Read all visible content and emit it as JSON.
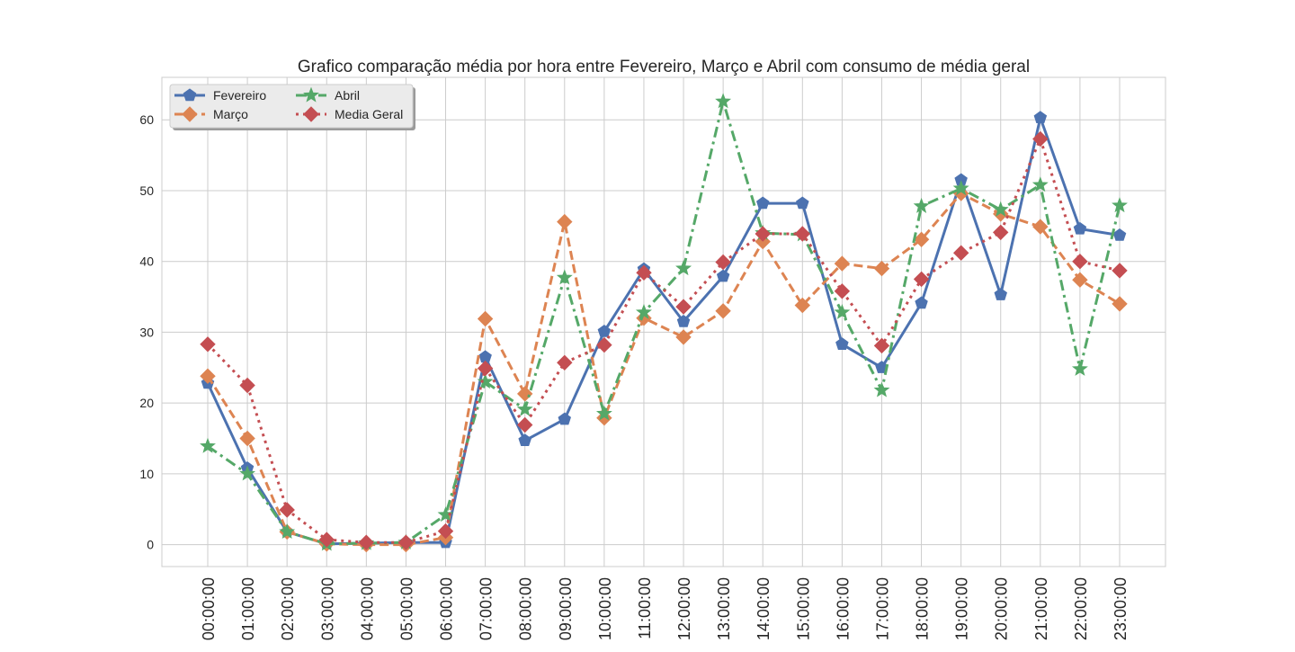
{
  "chart_data": {
    "type": "line",
    "title": "Grafico comparação média por hora entre Fevereiro, Março e Abril com consumo de média geral",
    "xlabel": "",
    "ylabel": "",
    "categories": [
      "00:00:00",
      "01:00:00",
      "02:00:00",
      "03:00:00",
      "04:00:00",
      "05:00:00",
      "06:00:00",
      "07:00:00",
      "08:00:00",
      "09:00:00",
      "10:00:00",
      "11:00:00",
      "12:00:00",
      "13:00:00",
      "14:00:00",
      "15:00:00",
      "16:00:00",
      "17:00:00",
      "18:00:00",
      "19:00:00",
      "20:00:00",
      "21:00:00",
      "22:00:00",
      "23:00:00"
    ],
    "ylim": [
      -3.1,
      66
    ],
    "yticks": [
      0,
      10,
      20,
      30,
      40,
      50,
      60
    ],
    "grid": true,
    "legend_position": "top-left",
    "series": [
      {
        "name": "Fevereiro",
        "color": "#4c72b0",
        "line": "solid",
        "marker": "pentagon",
        "values": [
          22.8,
          10.8,
          1.8,
          0.1,
          0.2,
          0.3,
          0.3,
          26.5,
          14.7,
          17.7,
          30.1,
          38.9,
          31.5,
          37.9,
          48.2,
          48.2,
          28.3,
          25.0,
          34.1,
          51.5,
          35.3,
          60.3,
          44.6,
          43.7
        ]
      },
      {
        "name": "Março",
        "color": "#dd8452",
        "line": "dashed",
        "marker": "diamond",
        "values": [
          23.8,
          15.0,
          1.8,
          0.1,
          0.0,
          0.0,
          1.0,
          31.9,
          21.3,
          45.6,
          17.9,
          32.0,
          29.3,
          33.0,
          42.8,
          33.8,
          39.7,
          39.0,
          43.1,
          49.6,
          46.7,
          44.9,
          37.4,
          34.0
        ]
      },
      {
        "name": "Abril",
        "color": "#55a868",
        "line": "dashdot",
        "marker": "star",
        "values": [
          13.9,
          10.0,
          1.8,
          0.1,
          0.2,
          0.3,
          4.2,
          23.0,
          19.1,
          37.7,
          18.5,
          32.8,
          39.0,
          62.6,
          44.0,
          43.8,
          32.8,
          21.8,
          47.8,
          50.3,
          47.3,
          50.8,
          24.8,
          47.9
        ]
      },
      {
        "name": "Media Geral",
        "color": "#c44e52",
        "line": "dotted",
        "marker": "diamond",
        "values": [
          28.3,
          22.5,
          4.9,
          0.7,
          0.3,
          0.3,
          1.9,
          24.9,
          16.9,
          25.7,
          28.2,
          38.4,
          33.6,
          39.9,
          43.9,
          43.9,
          35.8,
          28.1,
          37.5,
          41.2,
          44.1,
          57.3,
          40.0,
          38.7
        ]
      }
    ]
  }
}
